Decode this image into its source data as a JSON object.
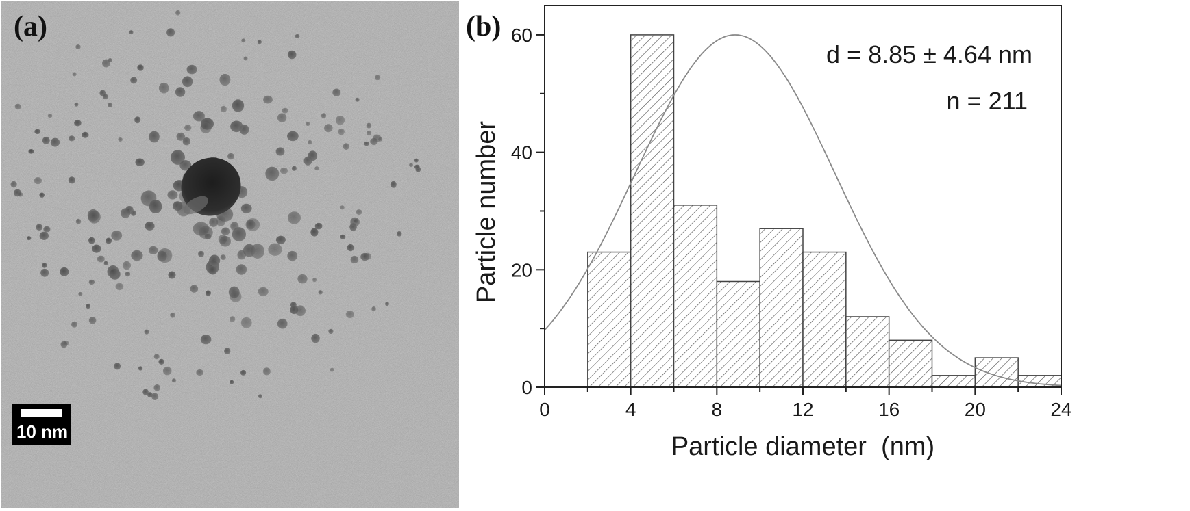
{
  "panel_a": {
    "label": "(a)",
    "scale_bar_label": "10 nm"
  },
  "chart_data": {
    "type": "bar",
    "panel_label": "(b)",
    "xlabel": "Particle diameter  (nm)",
    "ylabel": "Particle number",
    "xlim": [
      0,
      24
    ],
    "ylim": [
      0,
      65
    ],
    "x_ticks": [
      0,
      4,
      8,
      12,
      16,
      20,
      24
    ],
    "y_ticks": [
      0,
      20,
      40,
      60
    ],
    "bins": [
      {
        "from": 2,
        "to": 4,
        "count": 23
      },
      {
        "from": 4,
        "to": 6,
        "count": 60
      },
      {
        "from": 6,
        "to": 8,
        "count": 31
      },
      {
        "from": 8,
        "to": 10,
        "count": 18
      },
      {
        "from": 10,
        "to": 12,
        "count": 27
      },
      {
        "from": 12,
        "to": 14,
        "count": 23
      },
      {
        "from": 14,
        "to": 16,
        "count": 12
      },
      {
        "from": 16,
        "to": 18,
        "count": 8
      },
      {
        "from": 18,
        "to": 20,
        "count": 2
      },
      {
        "from": 20,
        "to": 22,
        "count": 5
      },
      {
        "from": 22,
        "to": 24,
        "count": 2
      }
    ],
    "fit_curve": {
      "type": "gaussian",
      "mean": 8.85,
      "sd": 4.64,
      "peak": 60
    },
    "annotations": [
      "d = 8.85 ± 4.64 nm",
      "n = 211"
    ],
    "bar_fill": "diagonal hatch",
    "bar_color": "#444444",
    "curve_color": "#8a8a8a",
    "grid": false
  }
}
